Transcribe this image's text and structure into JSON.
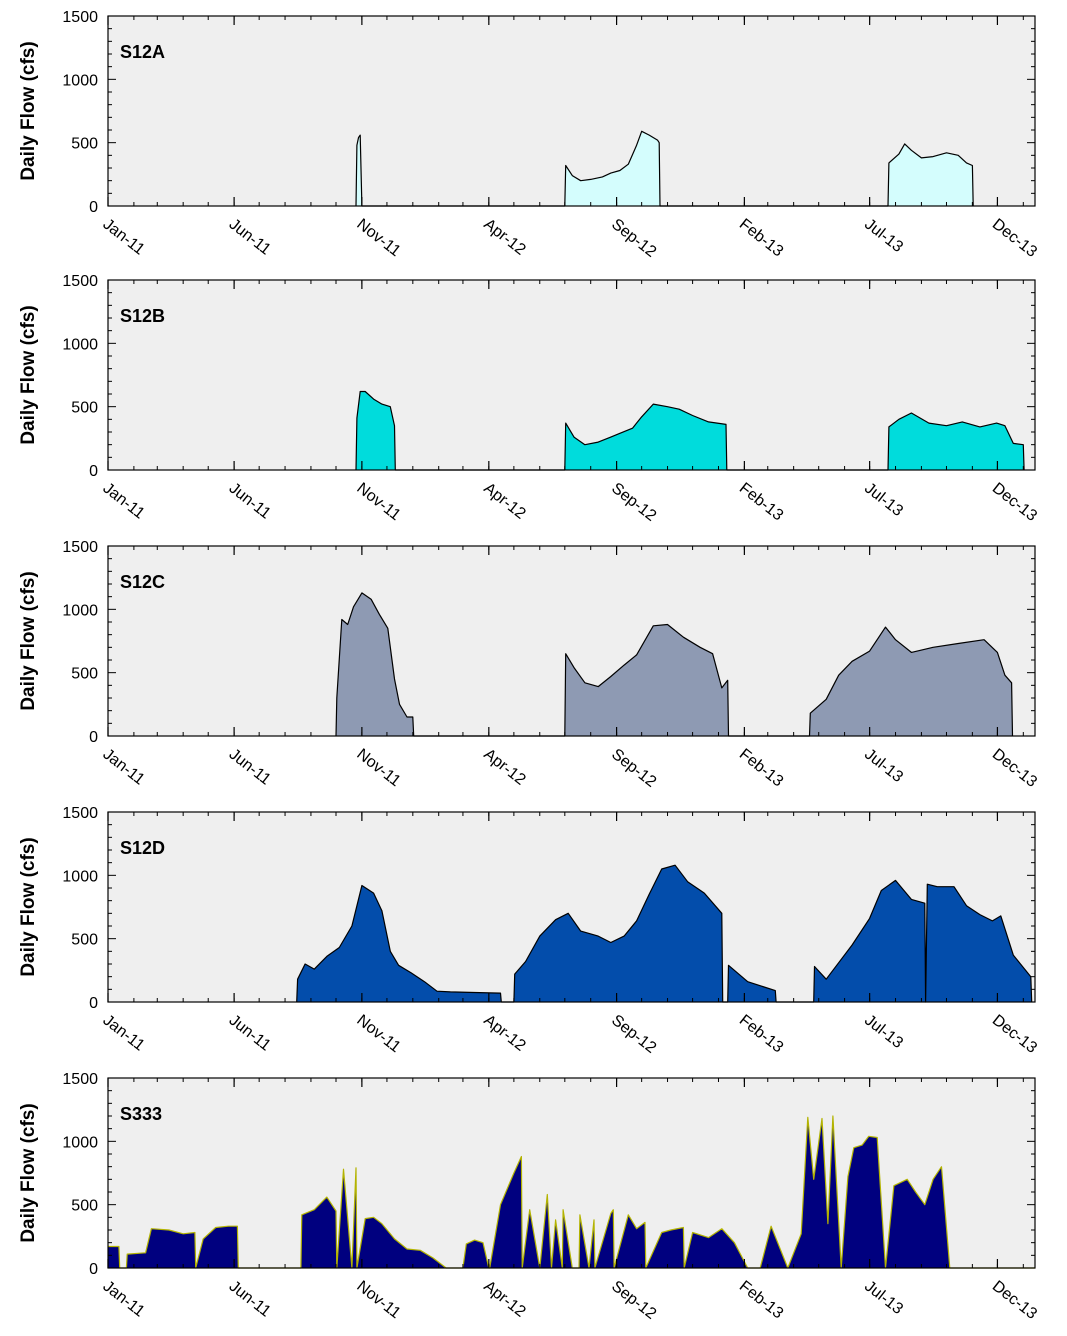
{
  "chart_data": [
    {
      "type": "area",
      "title": "S12A",
      "ylabel": "Daily Flow (cfs)",
      "ylim": [
        0,
        1500
      ],
      "yticks": [
        "0",
        "500",
        "1000",
        "1500"
      ],
      "xticks": [
        "Jan-11",
        "Jun-11",
        "Nov-11",
        "Apr-12",
        "Sep-12",
        "Feb-13",
        "Jul-13",
        "Dec-13"
      ],
      "xlim": [
        "2011-01-01",
        "2014-01-15"
      ],
      "fill": "#d4fdfd",
      "stroke": "#000000",
      "series": [
        {
          "x": [
            "2011-10-25",
            "2011-10-26",
            "2011-10-28",
            "2011-10-30",
            "2011-11-01",
            "2011-11-02",
            "2012-07-01",
            "2012-07-02",
            "2012-07-10",
            "2012-07-20",
            "2012-08-01",
            "2012-08-15",
            "2012-08-25",
            "2012-09-05",
            "2012-09-15",
            "2012-09-25",
            "2012-10-01",
            "2012-10-10",
            "2012-10-20",
            "2012-10-22",
            "2012-10-23",
            "2013-07-23",
            "2013-07-24",
            "2013-08-05",
            "2013-08-12",
            "2013-08-20",
            "2013-09-01",
            "2013-09-15",
            "2013-10-01",
            "2013-10-15",
            "2013-10-25",
            "2013-11-01",
            "2013-11-02"
          ],
          "values": [
            0,
            480,
            540,
            560,
            0,
            0,
            0,
            320,
            240,
            200,
            210,
            230,
            260,
            280,
            330,
            480,
            590,
            560,
            520,
            500,
            0,
            0,
            340,
            410,
            490,
            440,
            380,
            390,
            420,
            400,
            340,
            320,
            0
          ]
        }
      ]
    },
    {
      "type": "area",
      "title": "S12B",
      "ylabel": "Daily Flow (cfs)",
      "ylim": [
        0,
        1500
      ],
      "yticks": [
        "0",
        "500",
        "1000",
        "1500"
      ],
      "xticks": [
        "Jan-11",
        "Jun-11",
        "Nov-11",
        "Apr-12",
        "Sep-12",
        "Feb-13",
        "Jul-13",
        "Dec-13"
      ],
      "xlim": [
        "2011-01-01",
        "2014-01-15"
      ],
      "fill": "#00dcdc",
      "stroke": "#000000",
      "series": [
        {
          "x": [
            "2011-10-25",
            "2011-10-26",
            "2011-10-30",
            "2011-11-05",
            "2011-11-15",
            "2011-11-25",
            "2011-12-05",
            "2011-12-10",
            "2011-12-11",
            "2012-07-01",
            "2012-07-02",
            "2012-07-12",
            "2012-07-25",
            "2012-08-10",
            "2012-08-25",
            "2012-09-05",
            "2012-09-20",
            "2012-10-01",
            "2012-10-15",
            "2012-11-01",
            "2012-11-15",
            "2012-12-01",
            "2012-12-20",
            "2013-01-10",
            "2013-01-11",
            "2013-07-23",
            "2013-07-24",
            "2013-08-05",
            "2013-08-20",
            "2013-09-10",
            "2013-10-01",
            "2013-10-20",
            "2013-11-10",
            "2013-11-30",
            "2013-12-10",
            "2013-12-20",
            "2014-01-01",
            "2014-01-02"
          ],
          "values": [
            0,
            410,
            620,
            620,
            560,
            520,
            500,
            350,
            0,
            0,
            370,
            260,
            200,
            220,
            260,
            290,
            330,
            420,
            520,
            500,
            480,
            430,
            380,
            360,
            0,
            0,
            340,
            400,
            450,
            370,
            350,
            380,
            340,
            370,
            350,
            210,
            200,
            0
          ]
        }
      ]
    },
    {
      "type": "area",
      "title": "S12C",
      "ylabel": "Daily Flow (cfs)",
      "ylim": [
        0,
        1500
      ],
      "yticks": [
        "0",
        "500",
        "1000",
        "1500"
      ],
      "xticks": [
        "Jan-11",
        "Jun-11",
        "Nov-11",
        "Apr-12",
        "Sep-12",
        "Feb-13",
        "Jul-13",
        "Dec-13"
      ],
      "xlim": [
        "2011-01-01",
        "2014-01-15"
      ],
      "fill": "#8e9ab3",
      "stroke": "#000000",
      "series": [
        {
          "x": [
            "2011-10-01",
            "2011-10-02",
            "2011-10-08",
            "2011-10-15",
            "2011-10-22",
            "2011-11-01",
            "2011-11-12",
            "2011-11-22",
            "2011-12-02",
            "2011-12-10",
            "2011-12-16",
            "2011-12-25",
            "2012-01-01",
            "2012-01-02",
            "2012-07-01",
            "2012-07-02",
            "2012-07-12",
            "2012-07-25",
            "2012-08-10",
            "2012-08-25",
            "2012-09-10",
            "2012-09-25",
            "2012-10-15",
            "2012-11-01",
            "2012-11-20",
            "2012-12-10",
            "2012-12-25",
            "2013-01-05",
            "2013-01-12",
            "2013-01-13",
            "2013-04-20",
            "2013-04-21",
            "2013-05-10",
            "2013-05-25",
            "2013-06-10",
            "2013-07-01",
            "2013-07-20",
            "2013-08-01",
            "2013-08-20",
            "2013-09-15",
            "2013-10-15",
            "2013-11-15",
            "2013-12-01",
            "2013-12-10",
            "2013-12-18",
            "2013-12-19"
          ],
          "values": [
            0,
            300,
            920,
            880,
            1020,
            1130,
            1080,
            960,
            850,
            450,
            250,
            150,
            150,
            0,
            0,
            650,
            540,
            420,
            390,
            470,
            560,
            640,
            870,
            880,
            780,
            700,
            650,
            380,
            440,
            0,
            0,
            180,
            290,
            480,
            590,
            670,
            860,
            760,
            660,
            700,
            730,
            760,
            660,
            480,
            420,
            0
          ]
        }
      ]
    },
    {
      "type": "area",
      "title": "S12D",
      "ylabel": "Daily Flow (cfs)",
      "ylim": [
        0,
        1500
      ],
      "yticks": [
        "0",
        "500",
        "1000",
        "1500"
      ],
      "xticks": [
        "Jan-11",
        "Jun-11",
        "Nov-11",
        "Apr-12",
        "Sep-12",
        "Feb-13",
        "Jul-13",
        "Dec-13"
      ],
      "xlim": [
        "2011-01-01",
        "2014-01-15"
      ],
      "fill": "#034dab",
      "stroke": "#000000",
      "series": [
        {
          "x": [
            "2011-08-15",
            "2011-08-16",
            "2011-08-25",
            "2011-09-05",
            "2011-09-20",
            "2011-10-05",
            "2011-10-20",
            "2011-11-01",
            "2011-11-15",
            "2011-11-25",
            "2011-12-05",
            "2011-12-15",
            "2011-12-30",
            "2012-01-15",
            "2012-01-30",
            "2012-02-15",
            "2012-03-15",
            "2012-04-15",
            "2012-04-16",
            "2012-05-01",
            "2012-05-02",
            "2012-05-15",
            "2012-06-01",
            "2012-06-20",
            "2012-07-05",
            "2012-07-20",
            "2012-08-10",
            "2012-08-25",
            "2012-09-10",
            "2012-09-25",
            "2012-10-10",
            "2012-10-25",
            "2012-11-10",
            "2012-11-25",
            "2012-12-15",
            "2013-01-05",
            "2013-01-06",
            "2013-01-12",
            "2013-01-13",
            "2013-02-05",
            "2013-03-10",
            "2013-03-11",
            "2013-04-25",
            "2013-04-26",
            "2013-05-10",
            "2013-05-25",
            "2013-06-10",
            "2013-07-01",
            "2013-07-15",
            "2013-08-01",
            "2013-08-20",
            "2013-09-05",
            "2013-09-06",
            "2013-09-08",
            "2013-09-20",
            "2013-10-10",
            "2013-10-25",
            "2013-11-10",
            "2013-11-25",
            "2013-12-05",
            "2013-12-20",
            "2014-01-10",
            "2014-01-11"
          ],
          "values": [
            0,
            180,
            300,
            260,
            360,
            430,
            600,
            920,
            860,
            720,
            400,
            290,
            230,
            160,
            85,
            80,
            75,
            70,
            0,
            0,
            220,
            320,
            520,
            650,
            700,
            560,
            520,
            470,
            520,
            640,
            850,
            1050,
            1080,
            950,
            860,
            700,
            0,
            0,
            290,
            160,
            90,
            0,
            0,
            280,
            180,
            310,
            450,
            660,
            880,
            960,
            810,
            780,
            0,
            930,
            910,
            910,
            760,
            690,
            640,
            680,
            370,
            200,
            0
          ]
        }
      ]
    },
    {
      "type": "area",
      "title": "S333",
      "ylabel": "Daily Flow (cfs)",
      "ylim": [
        0,
        1500
      ],
      "yticks": [
        "0",
        "500",
        "1000",
        "1500"
      ],
      "xticks": [
        "Jan-11",
        "Jun-11",
        "Nov-11",
        "Apr-12",
        "Sep-12",
        "Feb-13",
        "Jul-13",
        "Dec-13"
      ],
      "xlim": [
        "2011-01-01",
        "2014-01-15"
      ],
      "fill": "#00007f",
      "stroke": "#b3b300",
      "series": [
        {
          "x": [
            "2011-01-01",
            "2011-01-14",
            "2011-01-15",
            "2011-01-23",
            "2011-01-24",
            "2011-02-15",
            "2011-02-22",
            "2011-03-15",
            "2011-04-01",
            "2011-04-15",
            "2011-04-16",
            "2011-04-25",
            "2011-05-10",
            "2011-05-25",
            "2011-06-05",
            "2011-06-06",
            "2011-08-20",
            "2011-08-21",
            "2011-09-05",
            "2011-09-20",
            "2011-10-01",
            "2011-10-02",
            "2011-10-10",
            "2011-10-20",
            "2011-10-25",
            "2011-10-26",
            "2011-11-05",
            "2011-11-15",
            "2011-11-25",
            "2011-12-10",
            "2011-12-25",
            "2012-01-10",
            "2012-01-25",
            "2012-02-10",
            "2012-03-01",
            "2012-03-05",
            "2012-03-15",
            "2012-03-25",
            "2012-04-01",
            "2012-04-02",
            "2012-04-15",
            "2012-05-01",
            "2012-05-10",
            "2012-05-11",
            "2012-05-20",
            "2012-06-01",
            "2012-06-10",
            "2012-06-15",
            "2012-06-20",
            "2012-06-28",
            "2012-06-29",
            "2012-07-10",
            "2012-07-18",
            "2012-07-19",
            "2012-07-30",
            "2012-08-05",
            "2012-08-06",
            "2012-08-25",
            "2012-08-28",
            "2012-08-29",
            "2012-09-15",
            "2012-09-25",
            "2012-10-05",
            "2012-10-06",
            "2012-10-25",
            "2012-11-05",
            "2012-11-20",
            "2012-11-21",
            "2012-12-01",
            "2012-12-20",
            "2013-01-05",
            "2013-01-20",
            "2013-02-05",
            "2013-02-20",
            "2013-03-05",
            "2013-03-25",
            "2013-04-10",
            "2013-04-18",
            "2013-04-25",
            "2013-05-05",
            "2013-05-12",
            "2013-05-18",
            "2013-05-28",
            "2013-06-05",
            "2013-06-12",
            "2013-06-22",
            "2013-06-30",
            "2013-07-10",
            "2013-07-20",
            "2013-07-30",
            "2013-08-15",
            "2013-08-25",
            "2013-09-05",
            "2013-09-15",
            "2013-09-25",
            "2013-10-05",
            "2013-10-12",
            "2013-10-20",
            "2013-10-28",
            "2013-10-29",
            "2014-01-15"
          ],
          "values": [
            170,
            170,
            0,
            0,
            110,
            120,
            310,
            300,
            270,
            280,
            0,
            230,
            320,
            330,
            330,
            0,
            0,
            420,
            460,
            560,
            450,
            0,
            780,
            0,
            790,
            0,
            390,
            400,
            350,
            230,
            150,
            140,
            80,
            0,
            0,
            190,
            220,
            200,
            0,
            0,
            500,
            750,
            880,
            0,
            460,
            0,
            580,
            0,
            380,
            0,
            460,
            0,
            0,
            420,
            0,
            380,
            0,
            430,
            460,
            0,
            420,
            310,
            360,
            0,
            280,
            300,
            320,
            0,
            280,
            240,
            310,
            200,
            0,
            0,
            330,
            0,
            270,
            1190,
            700,
            1180,
            350,
            1200,
            0,
            720,
            950,
            970,
            1040,
            1030,
            0,
            650,
            700,
            600,
            500,
            700,
            800,
            0,
            0,
            0,
            0,
            0,
            0
          ]
        }
      ]
    }
  ]
}
